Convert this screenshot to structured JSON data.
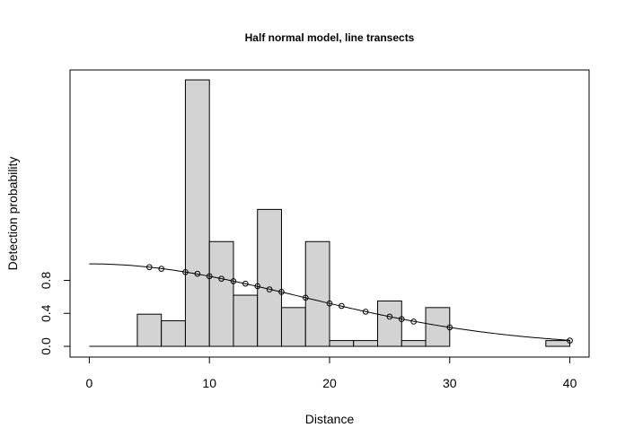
{
  "chart_data": {
    "type": "bar",
    "title": "Half normal model, line transects",
    "xlabel": "Distance",
    "ylabel": "Detection probability",
    "xlim": [
      -1.6,
      41.6
    ],
    "ylim": [
      -0.13,
      3.35
    ],
    "x_ticks": [
      0,
      10,
      20,
      30,
      40
    ],
    "y_ticks": [
      0.0,
      0.4,
      0.8
    ],
    "y_tick_labels": [
      "0.0",
      "0.4",
      "0.8"
    ],
    "grid": false,
    "bar_color": "#d3d3d3",
    "histogram": {
      "bin_width": 2,
      "bins": [
        {
          "x0": 4,
          "height": 0.39
        },
        {
          "x0": 6,
          "height": 0.31
        },
        {
          "x0": 8,
          "height": 3.23
        },
        {
          "x0": 10,
          "height": 1.27
        },
        {
          "x0": 12,
          "height": 0.62
        },
        {
          "x0": 14,
          "height": 1.66
        },
        {
          "x0": 16,
          "height": 0.47
        },
        {
          "x0": 18,
          "height": 1.27
        },
        {
          "x0": 20,
          "height": 0.07
        },
        {
          "x0": 22,
          "height": 0.07
        },
        {
          "x0": 24,
          "height": 0.55
        },
        {
          "x0": 26,
          "height": 0.07
        },
        {
          "x0": 28,
          "height": 0.47
        },
        {
          "x0": 38,
          "height": 0.07
        }
      ]
    },
    "curve": {
      "name": "half-normal detection function",
      "sigma": 17.5,
      "x_range": [
        0,
        40
      ]
    },
    "points": {
      "x": [
        5,
        6,
        8,
        9,
        10,
        11,
        12,
        13,
        14,
        15,
        16,
        18,
        20,
        21,
        23,
        25,
        26,
        27,
        30,
        40
      ],
      "y": [
        0.96,
        0.94,
        0.9,
        0.88,
        0.85,
        0.82,
        0.79,
        0.76,
        0.73,
        0.69,
        0.66,
        0.59,
        0.52,
        0.49,
        0.42,
        0.36,
        0.33,
        0.3,
        0.23,
        0.07
      ]
    }
  }
}
